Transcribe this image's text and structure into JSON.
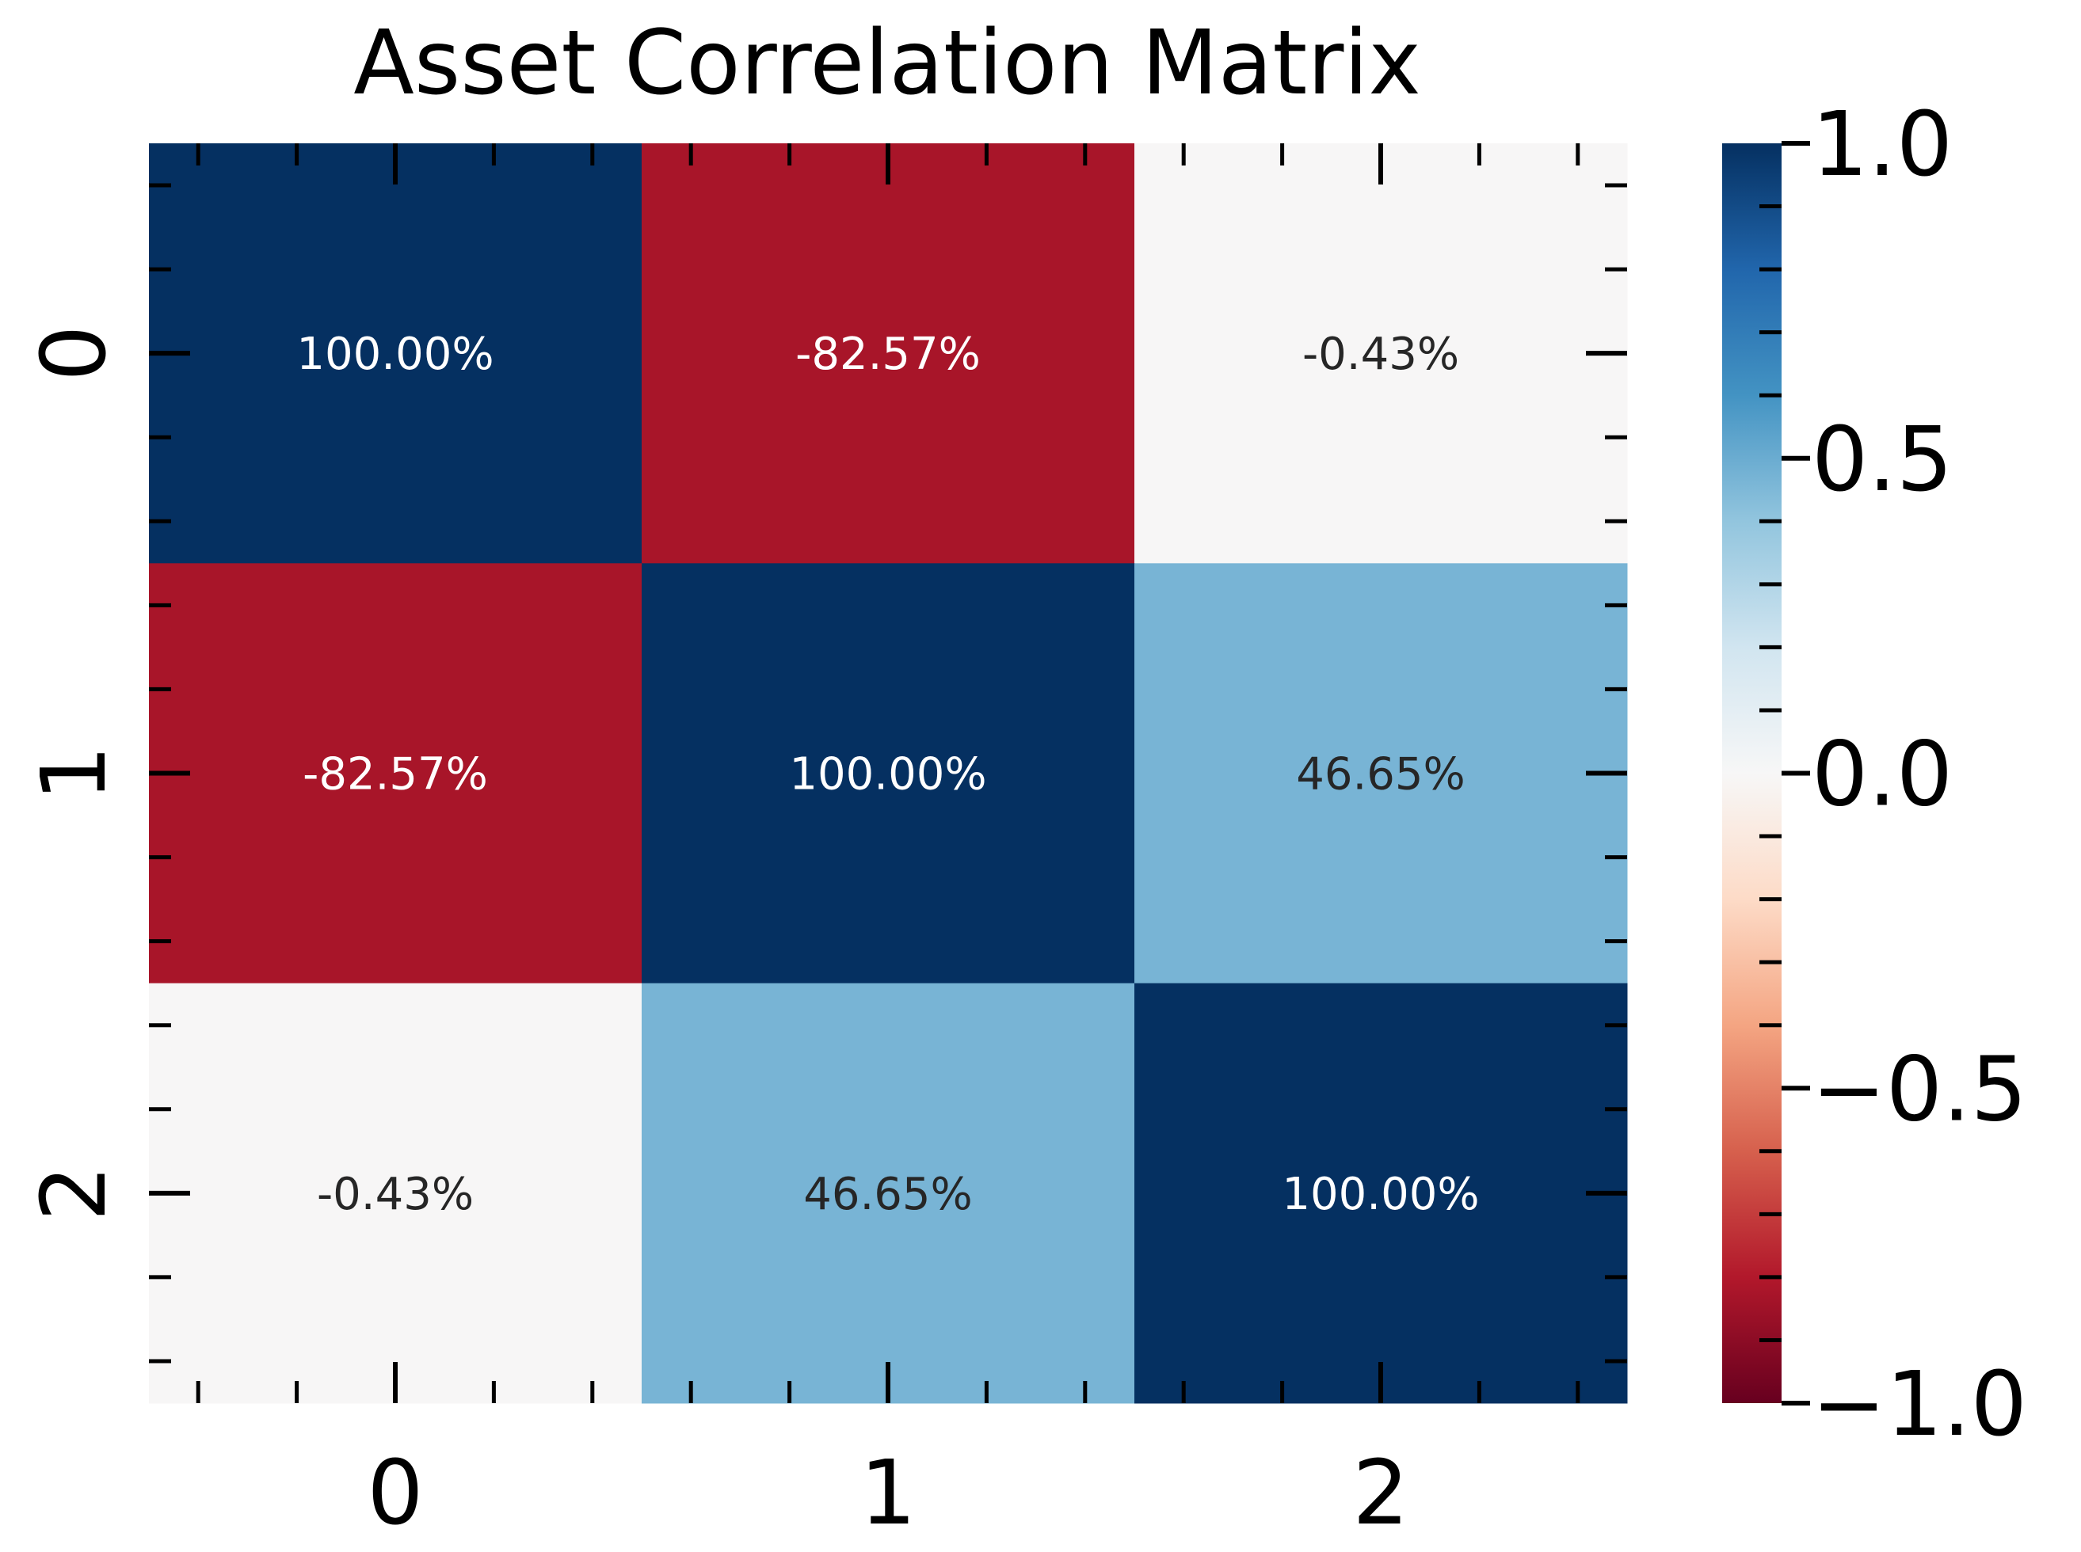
{
  "chart_data": {
    "type": "heatmap",
    "title": "Asset Correlation Matrix",
    "xlabel": "",
    "ylabel": "",
    "x_categories": [
      "0",
      "1",
      "2"
    ],
    "y_categories": [
      "0",
      "1",
      "2"
    ],
    "values": [
      [
        1.0,
        -0.8257,
        -0.0043
      ],
      [
        -0.8257,
        1.0,
        0.4665
      ],
      [
        -0.0043,
        0.4665,
        1.0
      ]
    ],
    "annotations": [
      [
        "100.00%",
        "-82.57%",
        "-0.43%"
      ],
      [
        "-82.57%",
        "100.00%",
        "46.65%"
      ],
      [
        "-0.43%",
        "46.65%",
        "100.00%"
      ]
    ],
    "colormap": "RdBu",
    "vmin": -1.0,
    "vmax": 1.0,
    "colorbar": {
      "ticks": [
        1.0,
        0.5,
        0.0,
        -0.5,
        -1.0
      ],
      "tick_labels": [
        "1.0",
        "0.5",
        "0.0",
        "−0.5",
        "−1.0"
      ]
    },
    "colors": {
      "text_light": "#ffffff",
      "text_dark": "#262626",
      "axis": "#000000"
    }
  }
}
